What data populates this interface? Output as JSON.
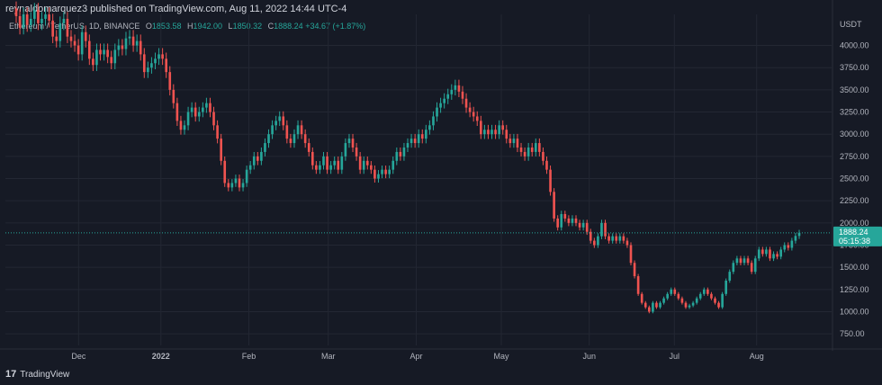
{
  "publisher": "reynaldomarquez3 published on TradingView.com, Aug 11, 2022 14:44 UTC-4",
  "legend": {
    "symbol": "Ethereum / TetherUS, 1D, BINANCE",
    "o_label": "O",
    "o": "1853.58",
    "h_label": "H",
    "h": "1942.00",
    "l_label": "L",
    "l": "1850.32",
    "c_label": "C",
    "c": "1888.24",
    "chg": "+34.67 (+1.87%)"
  },
  "brand": {
    "logo": "17",
    "name": "TradingView"
  },
  "colors": {
    "up": "#26a69a",
    "down": "#ef5350",
    "bg": "#161a25",
    "grid": "#232733",
    "axis_text": "#b2b5be"
  },
  "price_tag": {
    "price": "1888.24",
    "countdown": "05:15:38"
  },
  "chart_data": {
    "type": "candlestick",
    "currency": "USDT",
    "x_ticks": [
      "Dec",
      "2022",
      "Feb",
      "Mar",
      "Apr",
      "May",
      "Jun",
      "Jul",
      "Aug"
    ],
    "y_ticks": [
      "4000.00",
      "3750.00",
      "3500.00",
      "3250.00",
      "3000.00",
      "2750.00",
      "2500.00",
      "2250.00",
      "2000.00",
      "1750.00",
      "1500.00",
      "1250.00",
      "1000.00",
      "750.00"
    ],
    "ylim": [
      620,
      4350
    ],
    "grid": true,
    "last_close": 1888.24,
    "series": [
      {
        "t": 0,
        "c": 4330
      },
      {
        "t": 1,
        "c": 4200
      },
      {
        "t": 2,
        "c": 4350
      },
      {
        "t": 3,
        "c": 4230
      },
      {
        "t": 4,
        "c": 4300
      },
      {
        "t": 5,
        "c": 4400
      },
      {
        "t": 6,
        "c": 4250
      },
      {
        "t": 7,
        "c": 4300
      },
      {
        "t": 8,
        "c": 4350
      },
      {
        "t": 9,
        "c": 4280
      },
      {
        "t": 10,
        "c": 4100
      },
      {
        "t": 11,
        "c": 4050
      },
      {
        "t": 12,
        "c": 4250
      },
      {
        "t": 13,
        "c": 4300
      },
      {
        "t": 14,
        "c": 4100
      },
      {
        "t": 15,
        "c": 4050
      },
      {
        "t": 16,
        "c": 4000
      },
      {
        "t": 17,
        "c": 3900
      },
      {
        "t": 18,
        "c": 4150
      },
      {
        "t": 19,
        "c": 4050
      },
      {
        "t": 20,
        "c": 3850
      },
      {
        "t": 21,
        "c": 3780
      },
      {
        "t": 22,
        "c": 3950
      },
      {
        "t": 23,
        "c": 3900
      },
      {
        "t": 24,
        "c": 3950
      },
      {
        "t": 25,
        "c": 3870
      },
      {
        "t": 26,
        "c": 3800
      },
      {
        "t": 27,
        "c": 3950
      },
      {
        "t": 28,
        "c": 4000
      },
      {
        "t": 29,
        "c": 3960
      },
      {
        "t": 30,
        "c": 4080
      },
      {
        "t": 31,
        "c": 4100
      },
      {
        "t": 32,
        "c": 4000
      },
      {
        "t": 33,
        "c": 4050
      },
      {
        "t": 34,
        "c": 3900
      },
      {
        "t": 35,
        "c": 3700
      },
      {
        "t": 36,
        "c": 3750
      },
      {
        "t": 37,
        "c": 3800
      },
      {
        "t": 38,
        "c": 3850
      },
      {
        "t": 39,
        "c": 3900
      },
      {
        "t": 40,
        "c": 3850
      },
      {
        "t": 41,
        "c": 3700
      },
      {
        "t": 42,
        "c": 3500
      },
      {
        "t": 43,
        "c": 3350
      },
      {
        "t": 44,
        "c": 3150
      },
      {
        "t": 45,
        "c": 3050
      },
      {
        "t": 46,
        "c": 3100
      },
      {
        "t": 47,
        "c": 3250
      },
      {
        "t": 48,
        "c": 3300
      },
      {
        "t": 49,
        "c": 3200
      },
      {
        "t": 50,
        "c": 3250
      },
      {
        "t": 51,
        "c": 3300
      },
      {
        "t": 52,
        "c": 3350
      },
      {
        "t": 53,
        "c": 3250
      },
      {
        "t": 54,
        "c": 3100
      },
      {
        "t": 55,
        "c": 2950
      },
      {
        "t": 56,
        "c": 2700
      },
      {
        "t": 57,
        "c": 2450
      },
      {
        "t": 58,
        "c": 2400
      },
      {
        "t": 59,
        "c": 2450
      },
      {
        "t": 60,
        "c": 2500
      },
      {
        "t": 61,
        "c": 2400
      },
      {
        "t": 62,
        "c": 2450
      },
      {
        "t": 63,
        "c": 2600
      },
      {
        "t": 64,
        "c": 2650
      },
      {
        "t": 65,
        "c": 2750
      },
      {
        "t": 66,
        "c": 2700
      },
      {
        "t": 67,
        "c": 2800
      },
      {
        "t": 68,
        "c": 2900
      },
      {
        "t": 69,
        "c": 3000
      },
      {
        "t": 70,
        "c": 3100
      },
      {
        "t": 71,
        "c": 3150
      },
      {
        "t": 72,
        "c": 3200
      },
      {
        "t": 73,
        "c": 3100
      },
      {
        "t": 74,
        "c": 2950
      },
      {
        "t": 75,
        "c": 2900
      },
      {
        "t": 76,
        "c": 3000
      },
      {
        "t": 77,
        "c": 3100
      },
      {
        "t": 78,
        "c": 3000
      },
      {
        "t": 79,
        "c": 2900
      },
      {
        "t": 80,
        "c": 2800
      },
      {
        "t": 81,
        "c": 2650
      },
      {
        "t": 82,
        "c": 2600
      },
      {
        "t": 83,
        "c": 2650
      },
      {
        "t": 84,
        "c": 2750
      },
      {
        "t": 85,
        "c": 2600
      },
      {
        "t": 86,
        "c": 2650
      },
      {
        "t": 87,
        "c": 2700
      },
      {
        "t": 88,
        "c": 2600
      },
      {
        "t": 89,
        "c": 2750
      },
      {
        "t": 90,
        "c": 2900
      },
      {
        "t": 91,
        "c": 2950
      },
      {
        "t": 92,
        "c": 2850
      },
      {
        "t": 93,
        "c": 2750
      },
      {
        "t": 94,
        "c": 2600
      },
      {
        "t": 95,
        "c": 2700
      },
      {
        "t": 96,
        "c": 2650
      },
      {
        "t": 97,
        "c": 2600
      },
      {
        "t": 98,
        "c": 2500
      },
      {
        "t": 99,
        "c": 2550
      },
      {
        "t": 100,
        "c": 2600
      },
      {
        "t": 101,
        "c": 2550
      },
      {
        "t": 102,
        "c": 2600
      },
      {
        "t": 103,
        "c": 2700
      },
      {
        "t": 104,
        "c": 2800
      },
      {
        "t": 105,
        "c": 2750
      },
      {
        "t": 106,
        "c": 2850
      },
      {
        "t": 107,
        "c": 2900
      },
      {
        "t": 108,
        "c": 2950
      },
      {
        "t": 109,
        "c": 2900
      },
      {
        "t": 110,
        "c": 3000
      },
      {
        "t": 111,
        "c": 2950
      },
      {
        "t": 112,
        "c": 3050
      },
      {
        "t": 113,
        "c": 3100
      },
      {
        "t": 114,
        "c": 3200
      },
      {
        "t": 115,
        "c": 3300
      },
      {
        "t": 116,
        "c": 3350
      },
      {
        "t": 117,
        "c": 3400
      },
      {
        "t": 118,
        "c": 3450
      },
      {
        "t": 119,
        "c": 3500
      },
      {
        "t": 120,
        "c": 3550
      },
      {
        "t": 121,
        "c": 3480
      },
      {
        "t": 122,
        "c": 3400
      },
      {
        "t": 123,
        "c": 3300
      },
      {
        "t": 124,
        "c": 3250
      },
      {
        "t": 125,
        "c": 3200
      },
      {
        "t": 126,
        "c": 3150
      },
      {
        "t": 127,
        "c": 3000
      },
      {
        "t": 128,
        "c": 3050
      },
      {
        "t": 129,
        "c": 3000
      },
      {
        "t": 130,
        "c": 3050
      },
      {
        "t": 131,
        "c": 3000
      },
      {
        "t": 132,
        "c": 3100
      },
      {
        "t": 133,
        "c": 3050
      },
      {
        "t": 134,
        "c": 2950
      },
      {
        "t": 135,
        "c": 2900
      },
      {
        "t": 136,
        "c": 2950
      },
      {
        "t": 137,
        "c": 2850
      },
      {
        "t": 138,
        "c": 2800
      },
      {
        "t": 139,
        "c": 2750
      },
      {
        "t": 140,
        "c": 2850
      },
      {
        "t": 141,
        "c": 2800
      },
      {
        "t": 142,
        "c": 2900
      },
      {
        "t": 143,
        "c": 2800
      },
      {
        "t": 144,
        "c": 2700
      },
      {
        "t": 145,
        "c": 2600
      },
      {
        "t": 146,
        "c": 2350
      },
      {
        "t": 147,
        "c": 2050
      },
      {
        "t": 148,
        "c": 1950
      },
      {
        "t": 149,
        "c": 2100
      },
      {
        "t": 150,
        "c": 2050
      },
      {
        "t": 151,
        "c": 2000
      },
      {
        "t": 152,
        "c": 2050
      },
      {
        "t": 153,
        "c": 2000
      },
      {
        "t": 154,
        "c": 1950
      },
      {
        "t": 155,
        "c": 2000
      },
      {
        "t": 156,
        "c": 1900
      },
      {
        "t": 157,
        "c": 1800
      },
      {
        "t": 158,
        "c": 1750
      },
      {
        "t": 159,
        "c": 1850
      },
      {
        "t": 160,
        "c": 2000
      },
      {
        "t": 161,
        "c": 1850
      },
      {
        "t": 162,
        "c": 1800
      },
      {
        "t": 163,
        "c": 1850
      },
      {
        "t": 164,
        "c": 1800
      },
      {
        "t": 165,
        "c": 1850
      },
      {
        "t": 166,
        "c": 1800
      },
      {
        "t": 167,
        "c": 1750
      },
      {
        "t": 168,
        "c": 1550
      },
      {
        "t": 169,
        "c": 1400
      },
      {
        "t": 170,
        "c": 1200
      },
      {
        "t": 171,
        "c": 1100
      },
      {
        "t": 172,
        "c": 1050
      },
      {
        "t": 173,
        "c": 1000
      },
      {
        "t": 174,
        "c": 1100
      },
      {
        "t": 175,
        "c": 1050
      },
      {
        "t": 176,
        "c": 1100
      },
      {
        "t": 177,
        "c": 1150
      },
      {
        "t": 178,
        "c": 1200
      },
      {
        "t": 179,
        "c": 1250
      },
      {
        "t": 180,
        "c": 1200
      },
      {
        "t": 181,
        "c": 1150
      },
      {
        "t": 182,
        "c": 1100
      },
      {
        "t": 183,
        "c": 1050
      },
      {
        "t": 184,
        "c": 1070
      },
      {
        "t": 185,
        "c": 1100
      },
      {
        "t": 186,
        "c": 1150
      },
      {
        "t": 187,
        "c": 1200
      },
      {
        "t": 188,
        "c": 1250
      },
      {
        "t": 189,
        "c": 1200
      },
      {
        "t": 190,
        "c": 1150
      },
      {
        "t": 191,
        "c": 1100
      },
      {
        "t": 192,
        "c": 1050
      },
      {
        "t": 193,
        "c": 1200
      },
      {
        "t": 194,
        "c": 1350
      },
      {
        "t": 195,
        "c": 1450
      },
      {
        "t": 196,
        "c": 1550
      },
      {
        "t": 197,
        "c": 1600
      },
      {
        "t": 198,
        "c": 1550
      },
      {
        "t": 199,
        "c": 1600
      },
      {
        "t": 200,
        "c": 1550
      },
      {
        "t": 201,
        "c": 1450
      },
      {
        "t": 202,
        "c": 1600
      },
      {
        "t": 203,
        "c": 1700
      },
      {
        "t": 204,
        "c": 1650
      },
      {
        "t": 205,
        "c": 1700
      },
      {
        "t": 206,
        "c": 1600
      },
      {
        "t": 207,
        "c": 1650
      },
      {
        "t": 208,
        "c": 1620
      },
      {
        "t": 209,
        "c": 1700
      },
      {
        "t": 210,
        "c": 1750
      },
      {
        "t": 211,
        "c": 1720
      },
      {
        "t": 212,
        "c": 1800
      },
      {
        "t": 213,
        "c": 1853.58
      },
      {
        "t": 214,
        "c": 1888.24
      }
    ]
  }
}
